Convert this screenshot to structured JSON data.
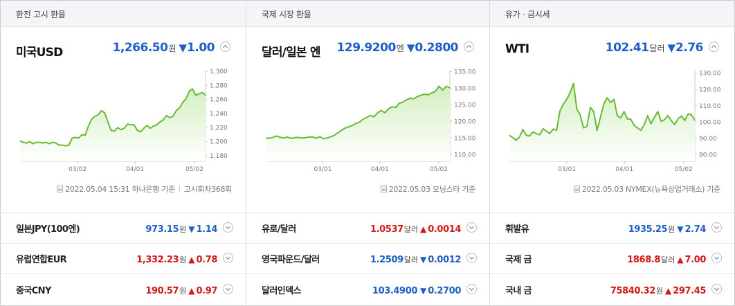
{
  "colors": {
    "up": "#d21919",
    "down": "#1d5fc6",
    "line": "#66bb33",
    "fill_top": "#d4efc2",
    "fill_bottom": "#ffffff"
  },
  "panels": [
    {
      "title": "환전 고시 환율",
      "name": "미국USD",
      "value": "1,266.50",
      "unit": "원",
      "direction": "down",
      "arrow": "▼",
      "change": "1.00",
      "toggle_icon": "chevron-up-icon",
      "source": {
        "date": "2022.05.04 15:31",
        "provider": "하나은행 기준",
        "extra": "고시회차368회"
      },
      "chart_data": {
        "type": "area",
        "x_ticks": [
          "03/02",
          "04/01",
          "05/02"
        ],
        "y_ticks": [
          "1,300",
          "1,280",
          "1,260",
          "1,240",
          "1,220",
          "1,200",
          "1,180"
        ],
        "ylim": [
          1172,
          1302
        ],
        "values": [
          1201,
          1199,
          1198,
          1200,
          1197,
          1199,
          1199,
          1198,
          1199,
          1197,
          1199,
          1198,
          1195,
          1195,
          1194,
          1195,
          1205,
          1206,
          1205,
          1210,
          1209,
          1222,
          1232,
          1236,
          1238,
          1244,
          1241,
          1228,
          1216,
          1215,
          1220,
          1217,
          1219,
          1225,
          1224,
          1224,
          1216,
          1214,
          1219,
          1223,
          1219,
          1222,
          1224,
          1228,
          1231,
          1237,
          1234,
          1236,
          1244,
          1248,
          1256,
          1261,
          1272,
          1275,
          1266,
          1268,
          1270,
          1266
        ]
      }
    },
    {
      "title": "국제 시장 환율",
      "name": "달러/일본 엔",
      "value": "129.9200",
      "unit": "엔",
      "direction": "down",
      "arrow": "▼",
      "change": "0.2800",
      "toggle_icon": "chevron-up-icon",
      "source": {
        "date": "2022.05.03",
        "provider": "모닝스타 기준",
        "extra": ""
      },
      "chart_data": {
        "type": "area",
        "x_ticks": [
          "03/01",
          "04/01",
          "05/02"
        ],
        "y_ticks": [
          "135.00",
          "130.00",
          "125.00",
          "120.00",
          "115.00",
          "110.00"
        ],
        "ylim": [
          108,
          135.5
        ],
        "values": [
          115.0,
          114.9,
          115.2,
          115.6,
          115.2,
          115.0,
          115.3,
          114.9,
          115.1,
          115.2,
          115.0,
          115.1,
          115.3,
          115.3,
          115.0,
          115.4,
          114.8,
          115.0,
          115.4,
          115.8,
          116.6,
          117.3,
          118.0,
          118.4,
          118.8,
          119.4,
          119.8,
          120.7,
          121.2,
          121.8,
          121.4,
          122.6,
          123.3,
          122.6,
          123.8,
          124.4,
          124.2,
          125.5,
          125.8,
          126.5,
          127.0,
          126.8,
          127.5,
          127.9,
          128.2,
          128.0,
          128.6,
          129.0,
          130.6,
          129.4,
          130.6,
          130.1
        ]
      }
    },
    {
      "title": "유가 · 금시세",
      "name": "WTI",
      "value": "102.41",
      "unit": "달러",
      "direction": "down",
      "arrow": "▼",
      "change": "2.76",
      "toggle_icon": "chevron-up-icon",
      "source": {
        "date": "2022.05.03",
        "provider": "NYMEX(뉴욕상업거래소) 기준",
        "extra": ""
      },
      "chart_data": {
        "type": "area",
        "x_ticks": [
          "03/01",
          "04/01",
          "05/02"
        ],
        "y_ticks": [
          "130.00",
          "120.00",
          "110.00",
          "100.00",
          "90.00",
          "80.00"
        ],
        "ylim": [
          76,
          132
        ],
        "values": [
          92.0,
          90.5,
          89.0,
          90.8,
          95.5,
          92.0,
          91.5,
          94.0,
          93.0,
          92.3,
          96.0,
          94.5,
          93.0,
          95.8,
          95.0,
          107.0,
          111.0,
          114.0,
          118.0,
          123.7,
          108.0,
          104.5,
          96.5,
          97.4,
          109.0,
          106.5,
          95.0,
          103.0,
          111.0,
          115.0,
          112.0,
          114.0,
          104.0,
          102.5,
          106.5,
          102.0,
          101.8,
          98.0,
          96.5,
          95.0,
          98.5,
          104.0,
          99.0,
          103.0,
          106.5,
          100.5,
          101.5,
          104.0,
          101.0,
          98.5,
          102.0,
          103.8,
          101.0,
          105.0,
          104.5,
          101.0
        ]
      }
    }
  ],
  "lists": [
    [
      {
        "name": "일본JPY(100엔)",
        "value": "973.15",
        "unit": "원",
        "direction": "down",
        "arrow": "▼",
        "change": "1.14",
        "toggle_icon": "chevron-down-icon"
      },
      {
        "name": "유럽연합EUR",
        "value": "1,332.23",
        "unit": "원",
        "direction": "up",
        "arrow": "▲",
        "change": "0.78",
        "toggle_icon": "chevron-down-icon"
      },
      {
        "name": "중국CNY",
        "value": "190.57",
        "unit": "원",
        "direction": "up",
        "arrow": "▲",
        "change": "0.97",
        "toggle_icon": "chevron-down-icon"
      }
    ],
    [
      {
        "name": "유로/달러",
        "value": "1.0537",
        "unit": "달러",
        "direction": "up",
        "arrow": "▲",
        "change": "0.0014",
        "toggle_icon": "chevron-down-icon"
      },
      {
        "name": "영국파운드/달러",
        "value": "1.2509",
        "unit": "달러",
        "direction": "down",
        "arrow": "▼",
        "change": "0.0012",
        "toggle_icon": "chevron-down-icon"
      },
      {
        "name": "달러인덱스",
        "value": "103.4900",
        "unit": "",
        "direction": "down",
        "arrow": "▼",
        "change": "0.2700",
        "toggle_icon": "chevron-down-icon"
      }
    ],
    [
      {
        "name": "휘발유",
        "value": "1935.25",
        "unit": "원",
        "direction": "down",
        "arrow": "▼",
        "change": "2.74",
        "toggle_icon": "chevron-down-icon"
      },
      {
        "name": "국제 금",
        "value": "1868.8",
        "unit": "달러",
        "direction": "up",
        "arrow": "▲",
        "change": "7.00",
        "toggle_icon": "chevron-down-icon"
      },
      {
        "name": "국내 금",
        "value": "75840.32",
        "unit": "원",
        "direction": "up",
        "arrow": "▲",
        "change": "297.45",
        "toggle_icon": "chevron-down-icon"
      }
    ]
  ]
}
